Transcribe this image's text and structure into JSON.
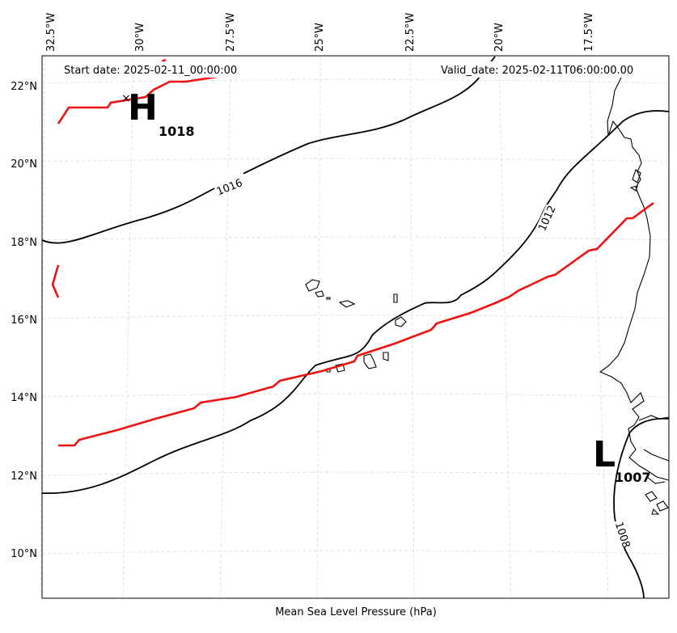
{
  "header": {
    "start_date": "Start date: 2025-02-11_00:00:00",
    "valid_date": "Valid_date: 2025-02-11T06:00:00.00"
  },
  "axes": {
    "xlabel": "Mean Sea Level Pressure (hPa)",
    "lon_ticks": [
      "32.5°W",
      "30°W",
      "27.5°W",
      "25°W",
      "22.5°W",
      "20°W",
      "17.5°W"
    ],
    "lat_ticks": [
      "22°N",
      "20°N",
      "18°N",
      "16°N",
      "14°N",
      "12°N",
      "10°N"
    ]
  },
  "pressure_centers": {
    "high": {
      "symbol": "H",
      "value": "1018"
    },
    "low": {
      "symbol": "L",
      "value": "1007"
    }
  },
  "isobar_labels": {
    "iso_1016": "1016",
    "iso_1012": "1012",
    "iso_1008": "1008"
  },
  "colors": {
    "isobar": "#000000",
    "contour_red": "#ee1111",
    "grid": "#d9d9d9"
  }
}
